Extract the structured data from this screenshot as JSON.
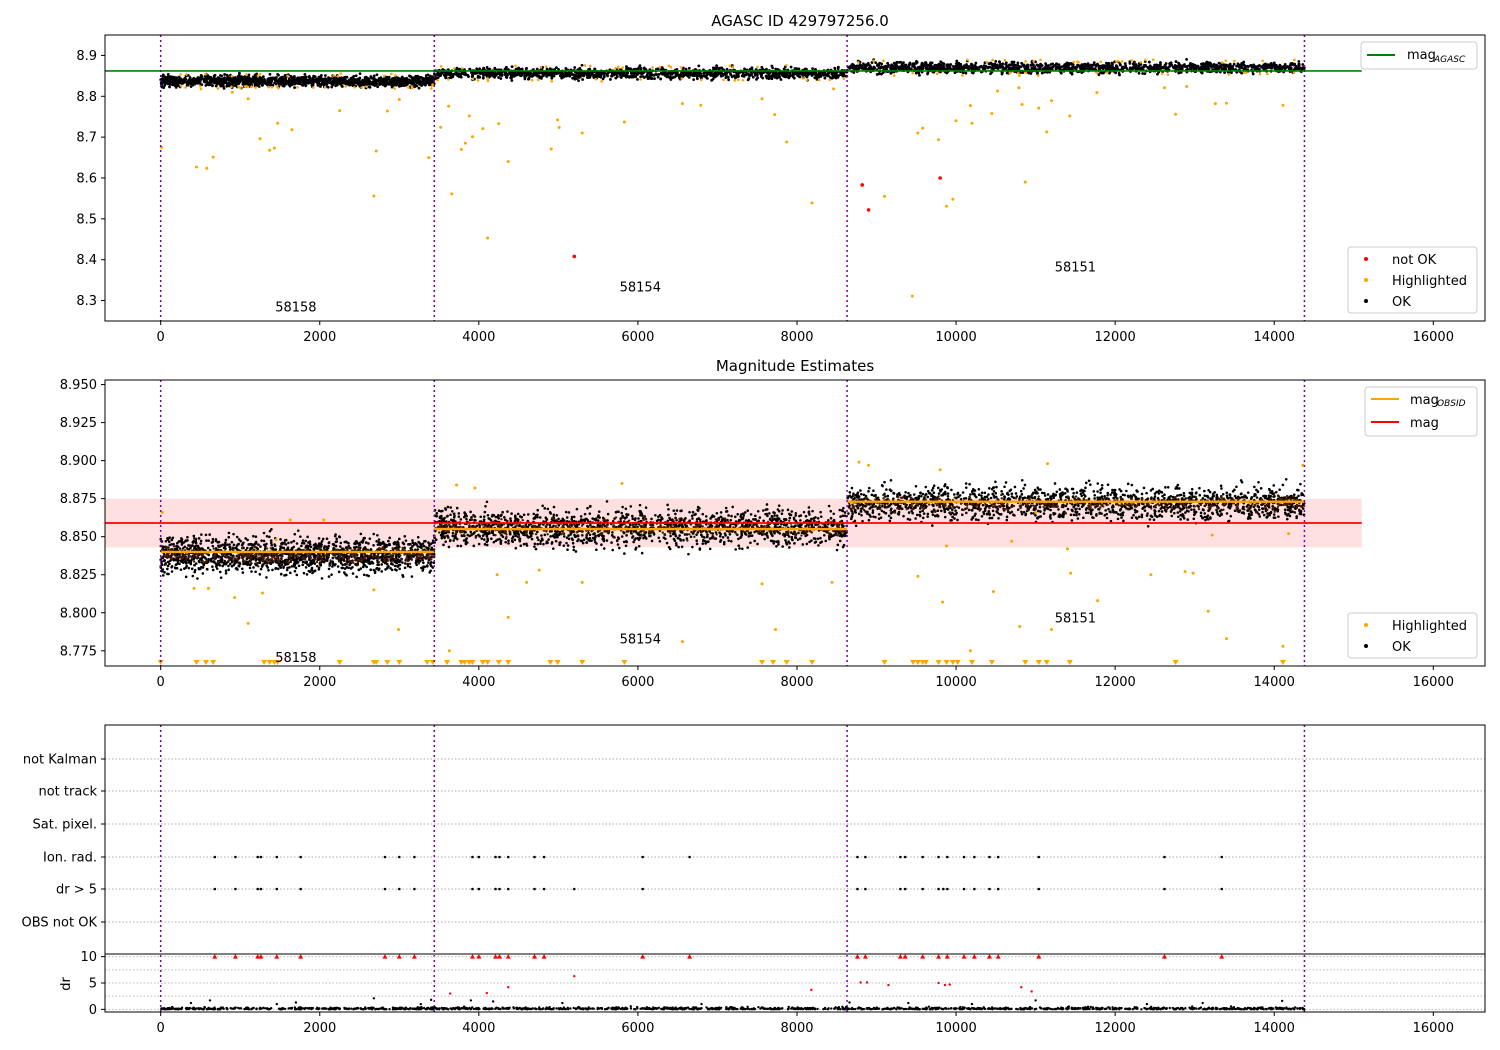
{
  "chart_data": [
    {
      "type": "scatter",
      "title": "AGASC ID 429797256.0",
      "xlim": [
        -700,
        16650
      ],
      "ylim": [
        8.25,
        8.95
      ],
      "xticks": [
        0,
        2000,
        4000,
        6000,
        8000,
        10000,
        12000,
        14000,
        16000
      ],
      "yticks": [
        8.3,
        8.4,
        8.5,
        8.6,
        8.7,
        8.8,
        8.9
      ],
      "obsid_boundaries": [
        0,
        3440,
        8630,
        14380
      ],
      "obsid_labels": [
        {
          "text": "58158",
          "x": 1700,
          "y": 8.285
        },
        {
          "text": "58154",
          "x": 6030,
          "y": 8.335
        },
        {
          "text": "58151",
          "x": 11500,
          "y": 8.383
        }
      ],
      "lines": [
        {
          "name": "mag",
          "sub": "AGASC",
          "color": "#008000",
          "x": [
            -700,
            15100
          ],
          "y": [
            8.862,
            8.862
          ]
        }
      ],
      "legend_lines_position": "top-right",
      "legend_points_position": "bottom-right",
      "series_legend": [
        {
          "name": "not OK",
          "color": "#ff0000"
        },
        {
          "name": "Highlighted",
          "color": "#ffa500"
        },
        {
          "name": "OK",
          "color": "#000000"
        }
      ],
      "band_segments": [
        {
          "x": [
            0,
            3440
          ],
          "center": 8.837,
          "spread": 0.016
        },
        {
          "x": [
            3440,
            8630
          ],
          "center": 8.856,
          "spread": 0.016
        },
        {
          "x": [
            8630,
            14380
          ],
          "center": 8.87,
          "spread": 0.016
        }
      ],
      "highlighted_points": [
        [
          10,
          8.675
        ],
        [
          450,
          8.627
        ],
        [
          580,
          8.624
        ],
        [
          660,
          8.651
        ],
        [
          900,
          8.81
        ],
        [
          1100,
          8.794
        ],
        [
          1250,
          8.696
        ],
        [
          1370,
          8.668
        ],
        [
          1430,
          8.673
        ],
        [
          1470,
          8.734
        ],
        [
          1650,
          8.718
        ],
        [
          2250,
          8.765
        ],
        [
          2680,
          8.556
        ],
        [
          2710,
          8.666
        ],
        [
          2850,
          8.764
        ],
        [
          3000,
          8.792
        ],
        [
          3370,
          8.65
        ],
        [
          3420,
          8.828
        ],
        [
          3520,
          8.724
        ],
        [
          3620,
          8.776
        ],
        [
          3660,
          8.561
        ],
        [
          3780,
          8.67
        ],
        [
          3830,
          8.685
        ],
        [
          3880,
          8.752
        ],
        [
          3920,
          8.701
        ],
        [
          4050,
          8.721
        ],
        [
          4110,
          8.453
        ],
        [
          4250,
          8.733
        ],
        [
          4370,
          8.64
        ],
        [
          4910,
          8.671
        ],
        [
          4990,
          8.742
        ],
        [
          5010,
          8.724
        ],
        [
          5300,
          8.71
        ],
        [
          5830,
          8.737
        ],
        [
          6560,
          8.782
        ],
        [
          6790,
          8.778
        ],
        [
          7560,
          8.794
        ],
        [
          7720,
          8.755
        ],
        [
          7870,
          8.688
        ],
        [
          8190,
          8.539
        ],
        [
          8460,
          8.818
        ],
        [
          9100,
          8.555
        ],
        [
          9450,
          8.311
        ],
        [
          9520,
          8.71
        ],
        [
          9580,
          8.722
        ],
        [
          9780,
          8.694
        ],
        [
          9880,
          8.531
        ],
        [
          9960,
          8.548
        ],
        [
          10000,
          8.74
        ],
        [
          10180,
          8.777
        ],
        [
          10200,
          8.734
        ],
        [
          10450,
          8.758
        ],
        [
          10520,
          8.813
        ],
        [
          10790,
          8.821
        ],
        [
          10830,
          8.78
        ],
        [
          10870,
          8.59
        ],
        [
          11040,
          8.771
        ],
        [
          11140,
          8.713
        ],
        [
          11200,
          8.789
        ],
        [
          11430,
          8.752
        ],
        [
          11770,
          8.809
        ],
        [
          12620,
          8.821
        ],
        [
          12760,
          8.756
        ],
        [
          12900,
          8.824
        ],
        [
          13260,
          8.782
        ],
        [
          13400,
          8.783
        ],
        [
          14110,
          8.778
        ]
      ],
      "notok_points": [
        [
          5200,
          8.408
        ],
        [
          8820,
          8.583
        ],
        [
          8900,
          8.522
        ],
        [
          9800,
          8.6
        ]
      ]
    },
    {
      "type": "scatter",
      "title": "Magnitude Estimates",
      "xlim": [
        -700,
        16650
      ],
      "ylim": [
        8.765,
        8.953
      ],
      "xticks": [
        0,
        2000,
        4000,
        6000,
        8000,
        10000,
        12000,
        14000,
        16000
      ],
      "yticks": [
        8.775,
        8.8,
        8.825,
        8.85,
        8.875,
        8.9,
        8.925,
        8.95
      ],
      "obsid_boundaries": [
        0,
        3440,
        8630,
        14380
      ],
      "obsid_labels": [
        {
          "text": "58158",
          "x": 1700,
          "y": 8.771
        },
        {
          "text": "58154",
          "x": 6030,
          "y": 8.783
        },
        {
          "text": "58151",
          "x": 11500,
          "y": 8.797
        }
      ],
      "lines": [
        {
          "name": "mag",
          "sub": "OBSID",
          "color": "#ffa500",
          "segments": [
            {
              "x": [
                0,
                3440
              ],
              "y": 8.84
            },
            {
              "x": [
                3440,
                8630
              ],
              "y": 8.855
            },
            {
              "x": [
                8630,
                14380
              ],
              "y": 8.873
            }
          ]
        },
        {
          "name": "mag",
          "sub": "",
          "color": "#ff0000",
          "x": [
            -700,
            15100
          ],
          "y": [
            8.859,
            8.859
          ]
        }
      ],
      "shaded_band": {
        "x": [
          -700,
          15100
        ],
        "y": [
          8.843,
          8.875
        ],
        "color": "#ffcccc"
      },
      "legend_lines_position": "top-right",
      "legend_points_position": "bottom-right",
      "series_legend": [
        {
          "name": "Highlighted",
          "color": "#ffa500"
        },
        {
          "name": "OK",
          "color": "#000000"
        }
      ],
      "band_segments": [
        {
          "x": [
            0,
            3440
          ],
          "center": 8.838,
          "spread": 0.013
        },
        {
          "x": [
            3440,
            8630
          ],
          "center": 8.856,
          "spread": 0.014
        },
        {
          "x": [
            8630,
            14380
          ],
          "center": 8.872,
          "spread": 0.012
        }
      ],
      "highlighted_points": [
        [
          20,
          8.866
        ],
        [
          420,
          8.816
        ],
        [
          600,
          8.816
        ],
        [
          930,
          8.81
        ],
        [
          1100,
          8.793
        ],
        [
          1280,
          8.813
        ],
        [
          1450,
          8.848
        ],
        [
          1630,
          8.861
        ],
        [
          2050,
          8.861
        ],
        [
          2680,
          8.815
        ],
        [
          2990,
          8.789
        ],
        [
          3630,
          8.775
        ],
        [
          3720,
          8.884
        ],
        [
          3950,
          8.882
        ],
        [
          4230,
          8.825
        ],
        [
          4370,
          8.797
        ],
        [
          4600,
          8.82
        ],
        [
          4760,
          8.828
        ],
        [
          5300,
          8.82
        ],
        [
          5800,
          8.885
        ],
        [
          6560,
          8.781
        ],
        [
          7560,
          8.819
        ],
        [
          7730,
          8.789
        ],
        [
          8440,
          8.82
        ],
        [
          8780,
          8.899
        ],
        [
          8900,
          8.897
        ],
        [
          9520,
          8.824
        ],
        [
          9830,
          8.807
        ],
        [
          9880,
          8.844
        ],
        [
          10180,
          8.775
        ],
        [
          10470,
          8.814
        ],
        [
          10700,
          8.847
        ],
        [
          10800,
          8.791
        ],
        [
          11000,
          8.866
        ],
        [
          11200,
          8.789
        ],
        [
          11400,
          8.842
        ],
        [
          11440,
          8.826
        ],
        [
          11780,
          8.808
        ],
        [
          12450,
          8.825
        ],
        [
          12880,
          8.827
        ],
        [
          12980,
          8.826
        ],
        [
          13170,
          8.801
        ],
        [
          13400,
          8.783
        ],
        [
          14110,
          8.778
        ],
        [
          14180,
          8.852
        ],
        [
          14360,
          8.897
        ],
        [
          9800,
          8.894
        ],
        [
          11150,
          8.898
        ],
        [
          13220,
          8.851
        ]
      ],
      "lower_limit_points": [
        0,
        450,
        570,
        660,
        1300,
        1370,
        1430,
        1470,
        2250,
        2680,
        2710,
        2850,
        3000,
        3350,
        3420,
        3600,
        3780,
        3820,
        3880,
        3920,
        4050,
        4110,
        4250,
        4370,
        4900,
        4990,
        5300,
        5830,
        7560,
        7700,
        7870,
        8190,
        9100,
        9460,
        9520,
        9580,
        9620,
        9780,
        9880,
        9960,
        10020,
        10200,
        10450,
        10870,
        11040,
        11140,
        11430,
        12760,
        14110
      ]
    },
    {
      "type": "scatter",
      "title": "",
      "xlim": [
        -700,
        16650
      ],
      "xticks": [
        0,
        2000,
        4000,
        6000,
        8000,
        10000,
        12000,
        14000,
        16000
      ],
      "obsid_boundaries": [
        0,
        3440,
        8630,
        14380
      ],
      "flag_rows": [
        "not Kalman",
        "not track",
        "Sat. pixel.",
        "Ion. rad.",
        "dr > 5",
        "OBS not OK"
      ],
      "flag_points": {
        "Ion. rad.": [
          680,
          940,
          1220,
          1260,
          1460,
          1760,
          2820,
          3000,
          3190,
          3920,
          4000,
          4210,
          4260,
          4370,
          4700,
          4820,
          6060,
          6650,
          8760,
          8860,
          9300,
          9360,
          9580,
          9780,
          9890,
          10100,
          10230,
          10420,
          10530,
          11040,
          12620,
          13340
        ],
        "dr > 5": [
          680,
          940,
          1220,
          1260,
          1460,
          1760,
          2820,
          3000,
          3190,
          3920,
          4000,
          4210,
          4260,
          4370,
          4700,
          4820,
          5200,
          6060,
          8760,
          8860,
          9300,
          9360,
          9580,
          9780,
          9840,
          9890,
          10100,
          10230,
          10420,
          10530,
          11040,
          12620,
          13340
        ]
      },
      "dr_ylabel": "dr",
      "dr_ylim": [
        -0.5,
        10.5
      ],
      "dr_yticks": [
        0,
        5,
        10
      ],
      "dr_capped_points": [
        680,
        940,
        1220,
        1260,
        1460,
        1760,
        2820,
        3000,
        3190,
        3920,
        4000,
        4210,
        4260,
        4370,
        4700,
        4820,
        6060,
        6650,
        8760,
        8860,
        9300,
        9360,
        9580,
        9780,
        9890,
        10100,
        10230,
        10420,
        10530,
        11040,
        12620,
        13340
      ],
      "dr_red_points": [
        [
          3640,
          3.0
        ],
        [
          4100,
          3.1
        ],
        [
          4370,
          4.2
        ],
        [
          5200,
          6.3
        ],
        [
          8180,
          3.7
        ],
        [
          8800,
          5.1
        ],
        [
          8880,
          5.1
        ],
        [
          9150,
          4.6
        ],
        [
          9780,
          5.0
        ],
        [
          9860,
          4.6
        ],
        [
          9920,
          4.7
        ],
        [
          10820,
          4.2
        ],
        [
          10950,
          3.4
        ]
      ],
      "dr_small_points": [
        [
          380,
          1.2
        ],
        [
          620,
          1.7
        ],
        [
          1460,
          1.0
        ],
        [
          1700,
          1.3
        ],
        [
          2680,
          2.1
        ],
        [
          3270,
          1.0
        ],
        [
          3400,
          1.8
        ],
        [
          3900,
          1.7
        ],
        [
          4180,
          1.5
        ],
        [
          5050,
          1.2
        ],
        [
          6800,
          1.0
        ],
        [
          8660,
          1.3
        ],
        [
          9400,
          1.2
        ],
        [
          10200,
          1.0
        ],
        [
          11000,
          1.7
        ],
        [
          12400,
          1.0
        ],
        [
          13100,
          1.2
        ],
        [
          14100,
          1.6
        ]
      ]
    }
  ]
}
